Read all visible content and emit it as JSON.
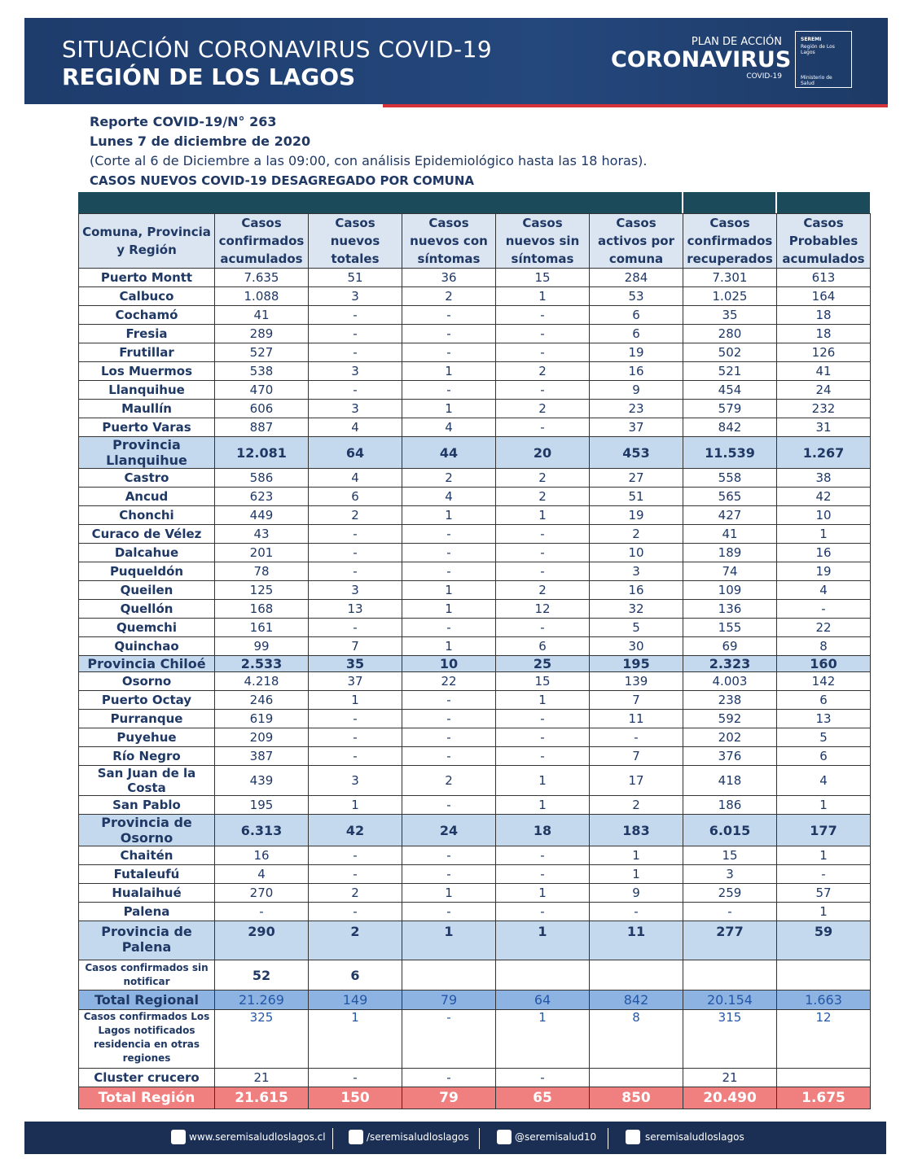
{
  "header": {
    "title": "SITUACIÓN CORONAVIRUS COVID-19",
    "subtitle": "REGIÓN DE LOS LAGOS",
    "logo": {
      "kicker": "PLAN DE ACCIÓN",
      "name": "CORONAVIRUS",
      "tag": "COVID-19"
    },
    "seal": {
      "top": "SEREMI",
      "region": "Región de Los Lagos",
      "ministry": "Ministerio de Salud"
    }
  },
  "report": {
    "number": "Reporte COVID-19/N° 263",
    "date": "Lunes 7 de diciembre de 2020",
    "note": "(Corte al 6 de Diciembre a las 09:00, con análisis Epidemiológico hasta las 18 horas).",
    "heading": "CASOS NUEVOS COVID-19 DESAGREGADO POR COMUNA"
  },
  "table": {
    "columns": [
      "Comuna, Provincia y Región",
      "Casos confirmados acumulados",
      "Casos nuevos totales",
      "Casos nuevos con síntomas",
      "Casos nuevos sin síntomas",
      "Casos activos por comuna",
      "Casos confirmados recuperados",
      "Casos Probables acumulados"
    ],
    "rows": [
      [
        "Puerto Montt",
        "7.635",
        "51",
        "36",
        "15",
        "284",
        "7.301",
        "613"
      ],
      [
        "Calbuco",
        "1.088",
        "3",
        "2",
        "1",
        "53",
        "1.025",
        "164"
      ],
      [
        "Cochamó",
        "41",
        "-",
        "-",
        "-",
        "6",
        "35",
        "18"
      ],
      [
        "Fresia",
        "289",
        "-",
        "-",
        "-",
        "6",
        "280",
        "18"
      ],
      [
        "Frutillar",
        "527",
        "-",
        "-",
        "-",
        "19",
        "502",
        "126"
      ],
      [
        "Los Muermos",
        "538",
        "3",
        "1",
        "2",
        "16",
        "521",
        "41"
      ],
      [
        "Llanquihue",
        "470",
        "-",
        "-",
        "-",
        "9",
        "454",
        "24"
      ],
      [
        "Maullín",
        "606",
        "3",
        "1",
        "2",
        "23",
        "579",
        "232"
      ],
      [
        "Puerto Varas",
        "887",
        "4",
        "4",
        "-",
        "37",
        "842",
        "31"
      ],
      [
        "Provincia Llanquihue",
        "12.081",
        "64",
        "44",
        "20",
        "453",
        "11.539",
        "1.267"
      ],
      [
        "Castro",
        "586",
        "4",
        "2",
        "2",
        "27",
        "558",
        "38"
      ],
      [
        "Ancud",
        "623",
        "6",
        "4",
        "2",
        "51",
        "565",
        "42"
      ],
      [
        "Chonchi",
        "449",
        "2",
        "1",
        "1",
        "19",
        "427",
        "10"
      ],
      [
        "Curaco de Vélez",
        "43",
        "-",
        "-",
        "-",
        "2",
        "41",
        "1"
      ],
      [
        "Dalcahue",
        "201",
        "-",
        "-",
        "-",
        "10",
        "189",
        "16"
      ],
      [
        "Puqueldón",
        "78",
        "-",
        "-",
        "-",
        "3",
        "74",
        "19"
      ],
      [
        "Queilen",
        "125",
        "3",
        "1",
        "2",
        "16",
        "109",
        "4"
      ],
      [
        "Quellón",
        "168",
        "13",
        "1",
        "12",
        "32",
        "136",
        "-"
      ],
      [
        "Quemchi",
        "161",
        "-",
        "-",
        "-",
        "5",
        "155",
        "22"
      ],
      [
        "Quinchao",
        "99",
        "7",
        "1",
        "6",
        "30",
        "69",
        "8"
      ],
      [
        "Provincia Chiloé",
        "2.533",
        "35",
        "10",
        "25",
        "195",
        "2.323",
        "160"
      ],
      [
        "Osorno",
        "4.218",
        "37",
        "22",
        "15",
        "139",
        "4.003",
        "142"
      ],
      [
        "Puerto Octay",
        "246",
        "1",
        "-",
        "1",
        "7",
        "238",
        "6"
      ],
      [
        "Purranque",
        "619",
        "-",
        "-",
        "-",
        "11",
        "592",
        "13"
      ],
      [
        "Puyehue",
        "209",
        "-",
        "-",
        "-",
        "-",
        "202",
        "5"
      ],
      [
        "Río Negro",
        "387",
        "-",
        "-",
        "-",
        "7",
        "376",
        "6"
      ],
      [
        "San Juan de la Costa",
        "439",
        "3",
        "2",
        "1",
        "17",
        "418",
        "4"
      ],
      [
        "San Pablo",
        "195",
        "1",
        "-",
        "1",
        "2",
        "186",
        "1"
      ],
      [
        "Provincia de Osorno",
        "6.313",
        "42",
        "24",
        "18",
        "183",
        "6.015",
        "177"
      ],
      [
        "Chaitén",
        "16",
        "-",
        "-",
        "-",
        "1",
        "15",
        "1"
      ],
      [
        "Futaleufú",
        "4",
        "-",
        "-",
        "-",
        "1",
        "3",
        "-"
      ],
      [
        "Hualaihué",
        "270",
        "2",
        "1",
        "1",
        "9",
        "259",
        "57"
      ],
      [
        "Palena",
        "-",
        "-",
        "-",
        "-",
        "-",
        "-",
        "1"
      ],
      [
        "Provincia de Palena",
        "290",
        "2",
        "1",
        "1",
        "11",
        "277",
        "59"
      ],
      [
        "Casos confirmados sin notificar",
        "52",
        "6",
        null,
        null,
        null,
        null,
        null
      ],
      [
        "Total Regional",
        "21.269",
        "149",
        "79",
        "64",
        "842",
        "20.154",
        "1.663"
      ],
      [
        "Casos confirmados Los Lagos  notificados residencia en otras regiones",
        "325",
        "1",
        "-",
        "1",
        "8",
        "315",
        "12"
      ],
      [
        "Cluster crucero",
        "21",
        "-",
        "-",
        "-",
        null,
        "21",
        null
      ],
      [
        "Total Región",
        "21.615",
        "150",
        "79",
        "65",
        "850",
        "20.490",
        "1.675"
      ]
    ]
  },
  "footer": {
    "web": "www.seremisaludloslagos.cl",
    "facebook": "/seremisaludloslagos",
    "twitter": "@seremisalud10",
    "instagram": "seremisaludloslagos"
  }
}
